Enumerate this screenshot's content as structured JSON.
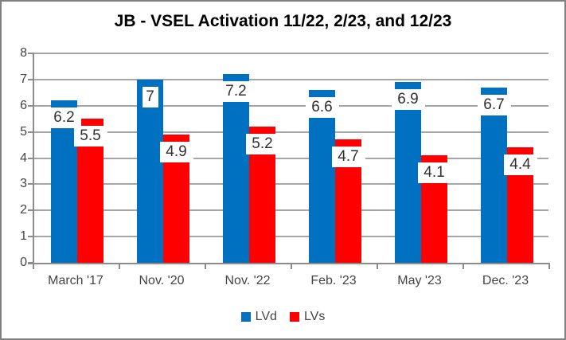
{
  "colors": {
    "series_lvd": "#0070C0",
    "series_lvs": "#FF0000",
    "gridline": "#A6A6A6",
    "axis": "#8C8C8C",
    "chart_border": "#808080",
    "tick_label_text": "#444444",
    "data_label_text": "#303030",
    "title_text": "#000000",
    "background": "#FFFFFF"
  },
  "chart_data": {
    "type": "bar",
    "title": "JB - VSEL Activation 11/22, 2/23, and 12/23",
    "categories": [
      "March '17",
      "Nov. '20",
      "Nov. '22",
      "Feb. '23",
      "May '23",
      "Dec. '23"
    ],
    "series": [
      {
        "name": "LVd",
        "color": "#0070C0",
        "values": [
          6.2,
          7,
          7.2,
          6.6,
          6.9,
          6.7
        ],
        "data_labels": [
          "6.2",
          "7",
          "7.2",
          "6.6",
          "6.9",
          "6.7"
        ]
      },
      {
        "name": "LVs",
        "color": "#FF0000",
        "values": [
          5.5,
          4.9,
          5.2,
          4.7,
          4.1,
          4.4
        ],
        "data_labels": [
          "5.5",
          "4.9",
          "5.2",
          "4.7",
          "4.1",
          "4.4"
        ]
      }
    ],
    "xlabel": "",
    "ylabel": "",
    "ylim": [
      0,
      8
    ],
    "y_ticks": [
      0,
      1,
      2,
      3,
      4,
      5,
      6,
      7,
      8
    ],
    "grid": true,
    "legend_position": "bottom",
    "data_label_style": "inside-end-white-box"
  }
}
